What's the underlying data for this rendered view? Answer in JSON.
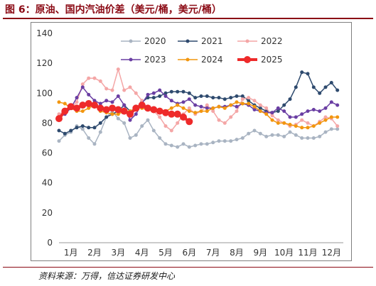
{
  "figure": {
    "title": "图 6：原油、国内汽油价差（美元/桶，美元/桶）",
    "source": "资料来源：万得，信达证券研发中心"
  },
  "chart_data": {
    "type": "line",
    "title": "",
    "xlabel": "",
    "ylabel": "",
    "ylim": [
      0,
      140
    ],
    "yticks": [
      0,
      20,
      40,
      60,
      80,
      100,
      120,
      140
    ],
    "xlim": [
      1,
      13
    ],
    "xticks": [
      {
        "x": 1,
        "label": "1月"
      },
      {
        "x": 2,
        "label": "2月"
      },
      {
        "x": 3,
        "label": "3月"
      },
      {
        "x": 4,
        "label": "4月"
      },
      {
        "x": 5,
        "label": "5月"
      },
      {
        "x": 6,
        "label": "6月"
      },
      {
        "x": 7,
        "label": "7月"
      },
      {
        "x": 8,
        "label": "8月"
      },
      {
        "x": 9,
        "label": "9月"
      },
      {
        "x": 10,
        "label": "10月"
      },
      {
        "x": 11,
        "label": "11月"
      },
      {
        "x": 12,
        "label": "12月"
      }
    ],
    "grid": false,
    "legend_position": "top",
    "series": [
      {
        "name": "2020",
        "color": "#a9b4c2",
        "width": 1.5,
        "marker": 2.5,
        "x": [
          1,
          1.25,
          1.5,
          1.75,
          2,
          2.25,
          2.5,
          2.75,
          3,
          3.25,
          3.5,
          3.75,
          4,
          4.25,
          4.5,
          4.75,
          5,
          5.25,
          5.5,
          5.75,
          6,
          6.25,
          6.5,
          6.75,
          7,
          7.25,
          7.5,
          7.75,
          8,
          8.25,
          8.5,
          8.75,
          9,
          9.25,
          9.5,
          9.75,
          10,
          10.25,
          10.5,
          10.75,
          11,
          11.25,
          11.5,
          11.75,
          12,
          12.25,
          12.5,
          12.75
        ],
        "y": [
          68,
          72,
          74,
          78,
          76,
          70,
          66,
          74,
          84,
          88,
          83,
          80,
          70,
          72,
          78,
          82,
          75,
          70,
          66,
          65,
          64,
          66,
          64,
          65,
          66,
          66,
          67,
          68,
          68,
          68,
          69,
          70,
          73,
          75,
          73,
          71,
          72,
          72,
          71,
          74,
          72,
          70,
          70,
          70,
          71,
          74,
          76,
          76
        ]
      },
      {
        "name": "2021",
        "color": "#2e4a6e",
        "width": 1.5,
        "marker": 2.5,
        "x": [
          1,
          1.25,
          1.5,
          1.75,
          2,
          2.25,
          2.5,
          2.75,
          3,
          3.25,
          3.5,
          3.75,
          4,
          4.25,
          4.5,
          4.75,
          5,
          5.25,
          5.5,
          5.75,
          6,
          6.25,
          6.5,
          6.75,
          7,
          7.25,
          7.5,
          7.75,
          8,
          8.25,
          8.5,
          8.75,
          9,
          9.25,
          9.5,
          9.75,
          10,
          10.25,
          10.5,
          10.75,
          11,
          11.25,
          11.5,
          11.75,
          12,
          12.25,
          12.5,
          12.75
        ],
        "y": [
          75,
          73,
          75,
          77,
          78,
          77,
          77,
          80,
          84,
          86,
          88,
          92,
          88,
          90,
          94,
          97,
          97,
          98,
          100,
          101,
          101,
          101,
          100,
          97,
          98,
          98,
          97,
          97,
          96,
          97,
          98,
          98,
          95,
          92,
          90,
          88,
          87,
          88,
          92,
          96,
          104,
          114,
          113,
          104,
          100,
          104,
          107,
          102
        ]
      },
      {
        "name": "2022",
        "color": "#f4a6a6",
        "width": 1.5,
        "marker": 2.5,
        "x": [
          1,
          1.25,
          1.5,
          1.75,
          2,
          2.25,
          2.5,
          2.75,
          3,
          3.25,
          3.5,
          3.75,
          4,
          4.25,
          4.5,
          4.75,
          5,
          5.25,
          5.5,
          5.75,
          6,
          6.25,
          6.5,
          6.75,
          7,
          7.25,
          7.5,
          7.75,
          8,
          8.25,
          8.5,
          8.75,
          9,
          9.25,
          9.5,
          9.75,
          10,
          10.25,
          10.5,
          10.75,
          11,
          11.25,
          11.5,
          11.75,
          12,
          12.25,
          12.5,
          12.75
        ],
        "y": [
          86,
          88,
          90,
          94,
          106,
          110,
          110,
          108,
          103,
          102,
          116,
          102,
          104,
          100,
          95,
          90,
          88,
          84,
          78,
          75,
          80,
          86,
          90,
          86,
          88,
          92,
          88,
          82,
          80,
          84,
          88,
          96,
          97,
          95,
          92,
          90,
          85,
          82,
          80,
          78,
          79,
          82,
          80,
          78,
          81,
          84,
          83,
          78
        ]
      },
      {
        "name": "2023",
        "color": "#6a3ea3",
        "width": 1.5,
        "marker": 2.5,
        "x": [
          1,
          1.25,
          1.5,
          1.75,
          2,
          2.25,
          2.5,
          2.75,
          3,
          3.25,
          3.5,
          3.75,
          4,
          4.25,
          4.5,
          4.75,
          5,
          5.25,
          5.5,
          5.75,
          6,
          6.25,
          6.5,
          6.75,
          7,
          7.25,
          7.5,
          7.75,
          8,
          8.25,
          8.5,
          8.75,
          9,
          9.25,
          9.5,
          9.75,
          10,
          10.25,
          10.5,
          10.75,
          11,
          11.25,
          11.5,
          11.75,
          12,
          12.25,
          12.5,
          12.75
        ],
        "y": [
          84,
          86,
          90,
          97,
          104,
          99,
          95,
          93,
          95,
          94,
          98,
          92,
          82,
          86,
          93,
          99,
          100,
          102,
          98,
          95,
          93,
          94,
          96,
          92,
          91,
          90,
          90,
          91,
          91,
          92,
          91,
          93,
          92,
          89,
          88,
          87,
          87,
          90,
          88,
          84,
          84,
          86,
          88,
          89,
          88,
          90,
          94,
          92
        ]
      },
      {
        "name": "2024",
        "color": "#f2960f",
        "width": 1.5,
        "marker": 2.5,
        "x": [
          1,
          1.25,
          1.5,
          1.75,
          2,
          2.25,
          2.5,
          2.75,
          3,
          3.25,
          3.5,
          3.75,
          4,
          4.25,
          4.5,
          4.75,
          5,
          5.25,
          5.5,
          5.75,
          6,
          6.25,
          6.5,
          6.75,
          7,
          7.25,
          7.5,
          7.75,
          8,
          8.25,
          8.5,
          8.75,
          9,
          9.25,
          9.5,
          9.75,
          10,
          10.25,
          10.5,
          10.75,
          11,
          11.25,
          11.5,
          11.75,
          12,
          12.25,
          12.5,
          12.75
        ],
        "y": [
          94,
          93,
          90,
          88,
          88,
          90,
          92,
          88,
          87,
          86,
          86,
          88,
          88,
          90,
          90,
          89,
          88,
          89,
          88,
          90,
          92,
          90,
          88,
          87,
          88,
          88,
          90,
          91,
          90,
          92,
          94,
          93,
          93,
          91,
          88,
          86,
          82,
          80,
          80,
          79,
          78,
          77,
          77,
          78,
          80,
          82,
          84,
          84
        ]
      },
      {
        "name": "2025",
        "color": "#ee2a2a",
        "width": 4,
        "marker": 5,
        "x": [
          1,
          1.25,
          1.5,
          1.75,
          2,
          2.25,
          2.5,
          2.75,
          3,
          3.25,
          3.5,
          3.75,
          4,
          4.25,
          4.5,
          4.75,
          5,
          5.25,
          5.5,
          5.75,
          6,
          6.25,
          6.5
        ],
        "y": [
          83,
          88,
          91,
          90,
          92,
          93,
          92,
          90,
          89,
          90,
          89,
          88,
          86,
          90,
          92,
          90,
          89,
          88,
          87,
          86,
          86,
          84,
          81
        ]
      }
    ]
  }
}
